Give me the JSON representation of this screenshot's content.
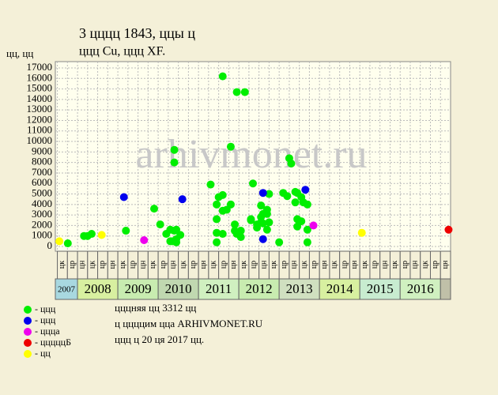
{
  "chart_data": {
    "type": "scatter",
    "title": "3 цццц 1843, ццы ц",
    "subtitle": "ццц Cu, ццц XF.",
    "y_label": "цц, цц",
    "watermark": "arhivmonet.ru",
    "xlim": [
      2007.45,
      2017.25
    ],
    "ylim": [
      0,
      17000
    ],
    "yticks": [
      0,
      1000,
      2000,
      3000,
      4000,
      5000,
      6000,
      7000,
      8000,
      9000,
      10000,
      11000,
      12000,
      13000,
      14000,
      15000,
      16000,
      17000
    ],
    "grid": true,
    "year_labels": [
      "2007",
      "2008",
      "2009",
      "2010",
      "2011",
      "2012",
      "2013",
      "2014",
      "2015",
      "2016"
    ],
    "year_colors": [
      "#a8d8e0",
      "#d8f0a0",
      "#c8ecb0",
      "#c0d8b0",
      "#d0f0c0",
      "#c8ecb0",
      "#d0e0c0",
      "#d8f0a0",
      "#c8ecd0",
      "#d0f0c0"
    ],
    "sub_labels": [
      "цк",
      "цр",
      "цн",
      "цк",
      "цр",
      "цн",
      "цк",
      "цр",
      "цн",
      "цк",
      "цр",
      "цн",
      "цк",
      "цр",
      "цн",
      "цк",
      "цр",
      "цн",
      "цк",
      "цр",
      "цн",
      "цк",
      "цр",
      "цн",
      "цк",
      "цр",
      "цн",
      "цк",
      "цр",
      "цн",
      "цк",
      "цр",
      "цн",
      "цк",
      "цр",
      "цн",
      "цк",
      "цр",
      "цн"
    ],
    "series": [
      {
        "name": "- ццц",
        "color": "#00ee00",
        "x": [
          2007.76,
          2008.16,
          2008.25,
          2008.35,
          2009.2,
          2009.9,
          2010.05,
          2010.2,
          2010.3,
          2010.3,
          2010.35,
          2010.4,
          2010.4,
          2010.4,
          2010.45,
          2010.45,
          2010.45,
          2010.55,
          2011.3,
          2011.45,
          2011.45,
          2011.45,
          2011.45,
          2011.5,
          2011.6,
          2011.6,
          2011.6,
          2011.6,
          2011.7,
          2011.8,
          2011.8,
          2011.9,
          2011.9,
          2011.95,
          2011.95,
          2012.05,
          2012.05,
          2012.15,
          2012.3,
          2012.3,
          2012.35,
          2012.45,
          2012.45,
          2012.55,
          2012.55,
          2012.55,
          2012.6,
          2012.6,
          2012.7,
          2012.7,
          2012.7,
          2012.75,
          2012.75,
          2013.0,
          2013.1,
          2013.2,
          2013.25,
          2013.3,
          2013.4,
          2013.4,
          2013.45,
          2013.45,
          2013.45,
          2013.55,
          2013.55,
          2013.6,
          2013.7,
          2013.7,
          2013.7
        ],
        "values": [
          300,
          1000,
          1000,
          1200,
          1500,
          3600,
          2100,
          1200,
          500,
          1600,
          500,
          8000,
          9200,
          1500,
          700,
          1600,
          400,
          1100,
          5900,
          4000,
          400,
          1300,
          2600,
          4700,
          16200,
          3400,
          1200,
          4900,
          3500,
          4000,
          9500,
          1500,
          2100,
          14700,
          1200,
          900,
          1500,
          14700,
          2600,
          2500,
          6000,
          1800,
          2100,
          2300,
          2800,
          3900,
          3100,
          2200,
          3100,
          3500,
          1600,
          2300,
          5000,
          400,
          5100,
          4800,
          8400,
          7900,
          4200,
          5200,
          1900,
          2600,
          5100,
          2400,
          4700,
          4200,
          1600,
          4000,
          400
        ]
      },
      {
        "name": "- ццц",
        "color": "#0000ee",
        "x": [
          2009.15,
          2010.6,
          2012.6,
          2012.6,
          2013.65
        ],
        "values": [
          4700,
          4500,
          5100,
          700,
          5400
        ]
      },
      {
        "name": "- ццца",
        "color": "#ee00ee",
        "x": [
          2009.65,
          2013.85
        ],
        "values": [
          600,
          2000
        ]
      },
      {
        "name": "- цццццБ",
        "color": "#ee0000",
        "x": [
          2017.2
        ],
        "values": [
          1600
        ]
      },
      {
        "name": "- цц",
        "color": "#ffff00",
        "x": [
          2007.55,
          2008.6,
          2015.05
        ],
        "values": [
          500,
          1100,
          1300
        ]
      }
    ],
    "notes": [
      "цццняя цц 3312 цц",
      "ц ццццим цца ARHIVMONET.RU",
      "ццц ц 20 ця 2017 цц."
    ]
  }
}
